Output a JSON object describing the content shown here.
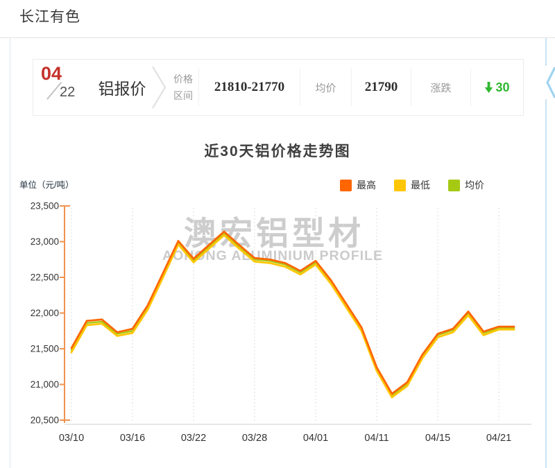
{
  "page": {
    "title": "长江有色"
  },
  "quote_bar": {
    "date": {
      "month": "04",
      "day": "22"
    },
    "product": "铝报价",
    "range_label_line1": "价格",
    "range_label_line2": "区间",
    "range_value": "21810-21770",
    "avg_label": "均价",
    "avg_value": "21790",
    "change_label": "涨跌",
    "change_value": "30",
    "change_direction": "down"
  },
  "chart": {
    "title": "近30天铝价格走势图",
    "unit_label": "单位（元/吨）",
    "watermark_line1": "澳宏铝型材",
    "watermark_line2": "AOHONG ALUMINIUM PROFILE"
  },
  "colors": {
    "month_red": "#c5312b",
    "change_green": "#2fb82f",
    "axis_orange": "#f0924e",
    "grid_dash": "#dcdcdc",
    "baseline_gray": "#cccccc",
    "tick_text": "#333333",
    "watermark_gray": "#c8c8c8",
    "panel_blue": "#c9e4f5",
    "carousel_chevron_blue": "#9fd4f2",
    "divider_gray": "#e2e2e2"
  },
  "chart_data": {
    "type": "line",
    "title": "近30天铝价格走势图",
    "ylabel": "单位（元/吨）",
    "ylim": [
      20500,
      23500
    ],
    "y_ticks": [
      23500,
      23000,
      22500,
      22000,
      21500,
      21000,
      20500
    ],
    "x_tick_labels": [
      "03/10",
      "03/16",
      "03/22",
      "03/28",
      "04/01",
      "04/11",
      "04/15",
      "04/21"
    ],
    "x_tick_indices": [
      0,
      4,
      8,
      12,
      16,
      20,
      24,
      28
    ],
    "n_points": 30,
    "grid": "vertical-dashed",
    "legend_position": "top-right",
    "series": [
      {
        "key": "max",
        "name": "最高",
        "color": "#ff6600",
        "values": [
          21510,
          21890,
          21910,
          21730,
          21780,
          22110,
          22560,
          23010,
          22760,
          22950,
          23140,
          22950,
          22770,
          22750,
          22700,
          22590,
          22730,
          22460,
          22130,
          21800,
          21240,
          20870,
          21030,
          21420,
          21710,
          21780,
          22020,
          21740,
          21810,
          21810
        ]
      },
      {
        "key": "min",
        "name": "最低",
        "color": "#ffc603",
        "values": [
          21450,
          21830,
          21850,
          21680,
          21720,
          22050,
          22500,
          22960,
          22710,
          22900,
          23090,
          22900,
          22720,
          22700,
          22650,
          22540,
          22680,
          22410,
          22080,
          21750,
          21190,
          20820,
          20980,
          21370,
          21660,
          21730,
          21970,
          21690,
          21770,
          21770
        ]
      },
      {
        "key": "avg",
        "name": "均价",
        "color": "#a6c914",
        "values": [
          21480,
          21860,
          21880,
          21710,
          21750,
          22080,
          22530,
          22990,
          22740,
          22930,
          23120,
          22930,
          22750,
          22730,
          22680,
          22570,
          22710,
          22440,
          22110,
          21780,
          21220,
          20850,
          21010,
          21400,
          21690,
          21760,
          22000,
          21720,
          21790,
          21790
        ]
      }
    ]
  }
}
